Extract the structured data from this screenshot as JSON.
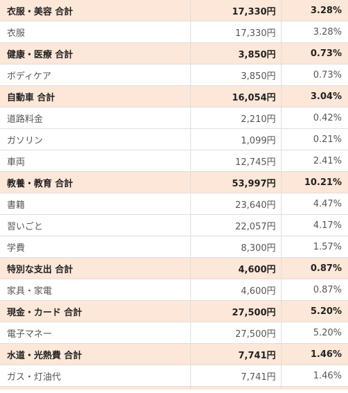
{
  "table": {
    "rows": [
      {
        "type": "total",
        "name": "衣服・美容 合計",
        "amount": "17,330円",
        "pct": "3.28%"
      },
      {
        "type": "item",
        "name": "衣服",
        "amount": "17,330円",
        "pct": "3.28%"
      },
      {
        "type": "total",
        "name": "健康・医療 合計",
        "amount": "3,850円",
        "pct": "0.73%"
      },
      {
        "type": "item",
        "name": "ボディケア",
        "amount": "3,850円",
        "pct": "0.73%"
      },
      {
        "type": "total",
        "name": "自動車 合計",
        "amount": "16,054円",
        "pct": "3.04%"
      },
      {
        "type": "item",
        "name": "道路料金",
        "amount": "2,210円",
        "pct": "0.42%"
      },
      {
        "type": "item",
        "name": "ガソリン",
        "amount": "1,099円",
        "pct": "0.21%"
      },
      {
        "type": "item",
        "name": "車両",
        "amount": "12,745円",
        "pct": "2.41%"
      },
      {
        "type": "total",
        "name": "教養・教育 合計",
        "amount": "53,997円",
        "pct": "10.21%"
      },
      {
        "type": "item",
        "name": "書籍",
        "amount": "23,640円",
        "pct": "4.47%"
      },
      {
        "type": "item",
        "name": "習いごと",
        "amount": "22,057円",
        "pct": "4.17%"
      },
      {
        "type": "item",
        "name": "学費",
        "amount": "8,300円",
        "pct": "1.57%"
      },
      {
        "type": "total",
        "name": "特別な支出 合計",
        "amount": "4,600円",
        "pct": "0.87%"
      },
      {
        "type": "item",
        "name": "家具・家電",
        "amount": "4,600円",
        "pct": "0.87%"
      },
      {
        "type": "total",
        "name": "現金・カード 合計",
        "amount": "27,500円",
        "pct": "5.20%"
      },
      {
        "type": "item",
        "name": "電子マネー",
        "amount": "27,500円",
        "pct": "5.20%"
      },
      {
        "type": "total",
        "name": "水道・光熱費 合計",
        "amount": "7,741円",
        "pct": "1.46%"
      },
      {
        "type": "item",
        "name": "ガス・灯油代",
        "amount": "7,741円",
        "pct": "1.46%"
      }
    ]
  },
  "colors": {
    "total_row_bg": "#fde7d8",
    "item_row_bg": "#ffffff",
    "border": "#dedede"
  }
}
